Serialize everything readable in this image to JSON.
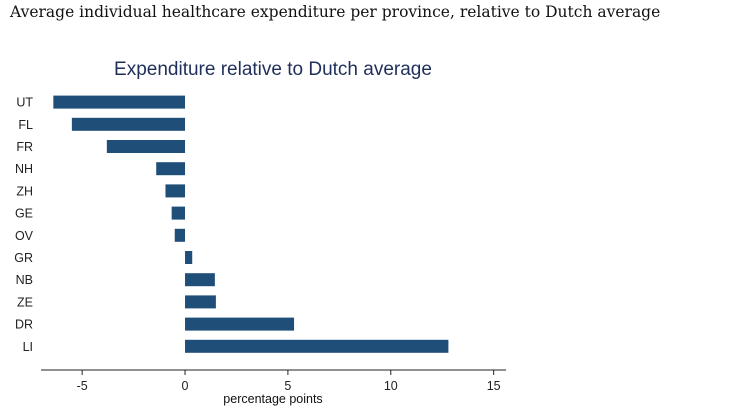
{
  "caption": "Average individual healthcare expenditure per province, relative to Dutch average",
  "chart_data": {
    "type": "bar",
    "orientation": "horizontal",
    "title": "Expenditure relative to Dutch average",
    "xlabel": "percentage points",
    "ylabel": "",
    "categories": [
      "UT",
      "FL",
      "FR",
      "NH",
      "ZH",
      "GE",
      "OV",
      "GR",
      "NB",
      "ZE",
      "DR",
      "LI"
    ],
    "values": [
      -6.4,
      -5.5,
      -3.8,
      -1.4,
      -0.95,
      -0.65,
      -0.5,
      0.35,
      1.45,
      1.5,
      5.3,
      12.8
    ],
    "xlim": [
      -7,
      15.6
    ],
    "xticks": [
      -5,
      0,
      5,
      10,
      15
    ],
    "grid": false,
    "bar_color": "#1f4e79"
  }
}
